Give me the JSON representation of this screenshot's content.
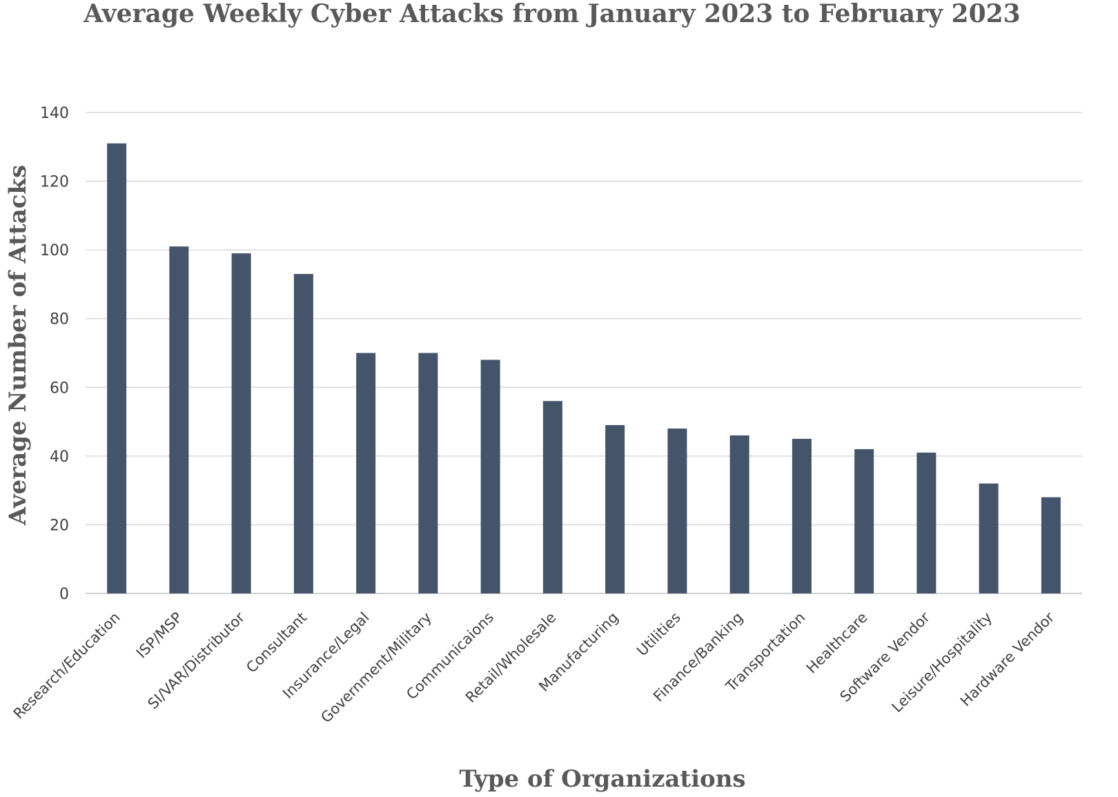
{
  "chart_data": {
    "type": "bar",
    "title": "Average Weekly Cyber Attacks from January 2023 to February 2023",
    "xlabel": "Type of Organizations",
    "ylabel": "Average Number of Attacks",
    "ylim": [
      0,
      140
    ],
    "yticks": [
      0,
      20,
      40,
      60,
      80,
      100,
      120,
      140
    ],
    "grid": true,
    "bar_color": "#44546a",
    "categories": [
      "Research/Education",
      "ISP/MSP",
      "SI/VAR/Distributor",
      "Consultant",
      "Insurance/Legal",
      "Government/Military",
      "Communicaions",
      "Retail/Wholesale",
      "Manufacturing",
      "Utilities",
      "Finance/Banking",
      "Transportation",
      "Healthcare",
      "Software Vendor",
      "Leisure/Hospitality",
      "Hardware Vendor"
    ],
    "values": [
      131,
      101,
      99,
      93,
      70,
      70,
      68,
      56,
      49,
      48,
      46,
      45,
      42,
      41,
      32,
      28
    ]
  }
}
